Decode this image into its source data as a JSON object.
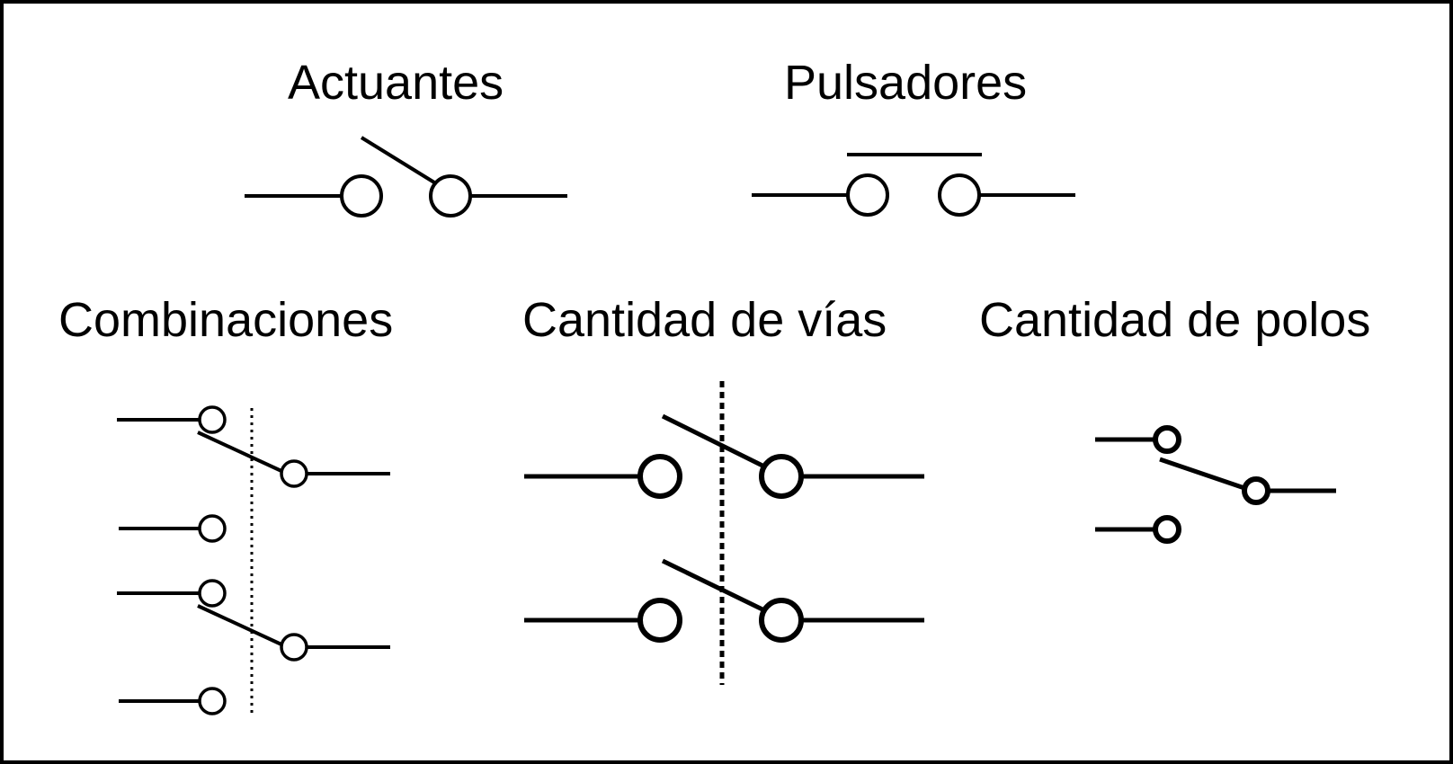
{
  "titles": {
    "actuantes": "Actuantes",
    "pulsadores": "Pulsadores",
    "combinaciones": "Combinaciones",
    "vias": "Cantidad de vías",
    "polos": "Cantidad de polos"
  },
  "symbols": [
    "switch-open-symbol",
    "pushbutton-symbol",
    "ganged-changeover-switch-symbol",
    "double-switch-symbol",
    "changeover-switch-symbol"
  ]
}
